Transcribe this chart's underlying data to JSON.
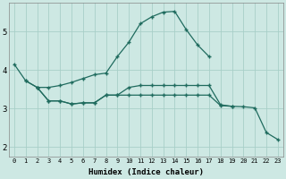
{
  "xlabel": "Humidex (Indice chaleur)",
  "bg_color": "#cde8e3",
  "line_color": "#1f6b5e",
  "grid_color": "#a8cfc8",
  "ylim": [
    1.75,
    5.75
  ],
  "yticks": [
    2,
    3,
    4,
    5
  ],
  "xlim": [
    -0.5,
    23.5
  ],
  "xticks": [
    0,
    1,
    2,
    3,
    4,
    5,
    6,
    7,
    8,
    9,
    10,
    11,
    12,
    13,
    14,
    15,
    16,
    17,
    18,
    19,
    20,
    21,
    22,
    23
  ],
  "series": [
    {
      "x": [
        0,
        1,
        2,
        3,
        4,
        5,
        6,
        7,
        8,
        9,
        10,
        11,
        12,
        13,
        14,
        15,
        16,
        17
      ],
      "y": [
        4.15,
        3.72,
        3.55,
        3.55,
        3.6,
        3.68,
        3.78,
        3.88,
        3.92,
        4.35,
        4.72,
        5.2,
        5.38,
        5.5,
        5.52,
        5.05,
        4.65,
        4.35
      ]
    },
    {
      "x": [
        1,
        2,
        3,
        4,
        5,
        6,
        7,
        8,
        9,
        10,
        11,
        12,
        13,
        14,
        15,
        16,
        17,
        18,
        19
      ],
      "y": [
        3.72,
        3.55,
        3.2,
        3.2,
        3.12,
        3.15,
        3.15,
        3.35,
        3.35,
        3.55,
        3.6,
        3.6,
        3.6,
        3.6,
        3.6,
        3.6,
        3.6,
        3.1,
        3.06
      ]
    },
    {
      "x": [
        2,
        3,
        4,
        5,
        6,
        7,
        8,
        9,
        10,
        11,
        12,
        13,
        14,
        15,
        16,
        17,
        18,
        19,
        20,
        21,
        22,
        23
      ],
      "y": [
        3.55,
        3.2,
        3.2,
        3.12,
        3.15,
        3.15,
        3.35,
        3.35,
        3.35,
        3.35,
        3.35,
        3.35,
        3.35,
        3.35,
        3.35,
        3.35,
        3.08,
        3.06,
        3.05,
        3.02,
        2.38,
        2.2
      ]
    }
  ]
}
